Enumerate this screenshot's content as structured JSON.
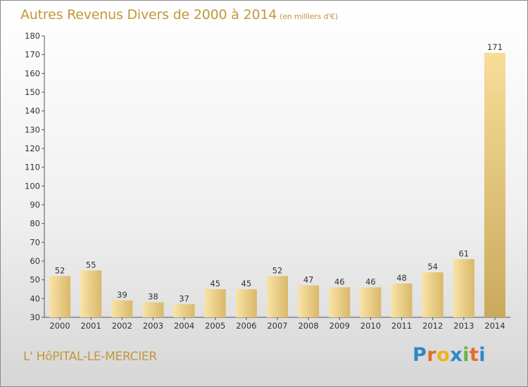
{
  "chart_data": {
    "type": "bar",
    "title": "Autres Revenus Divers de 2000 à 2014",
    "subtitle": "(en milliers d'€)",
    "xlabel": "",
    "ylabel": "",
    "categories": [
      "2000",
      "2001",
      "2002",
      "2003",
      "2004",
      "2005",
      "2006",
      "2007",
      "2008",
      "2009",
      "2010",
      "2011",
      "2012",
      "2013",
      "2014"
    ],
    "values": [
      52,
      55,
      39,
      38,
      37,
      45,
      45,
      52,
      47,
      46,
      46,
      48,
      54,
      61,
      171
    ],
    "ylim": [
      30,
      180
    ],
    "yticks": [
      30,
      40,
      50,
      60,
      70,
      80,
      90,
      100,
      110,
      120,
      130,
      140,
      150,
      160,
      170,
      180
    ],
    "grid": false,
    "data_labels": true
  },
  "footer": {
    "place_name": "L' HôPITAL-LE-MERCIER",
    "brand": "Proxiti"
  },
  "colors": {
    "bar_light": "#f8dc98",
    "bar_dark": "#c9a755",
    "title": "#c2973a",
    "text": "#333333"
  }
}
